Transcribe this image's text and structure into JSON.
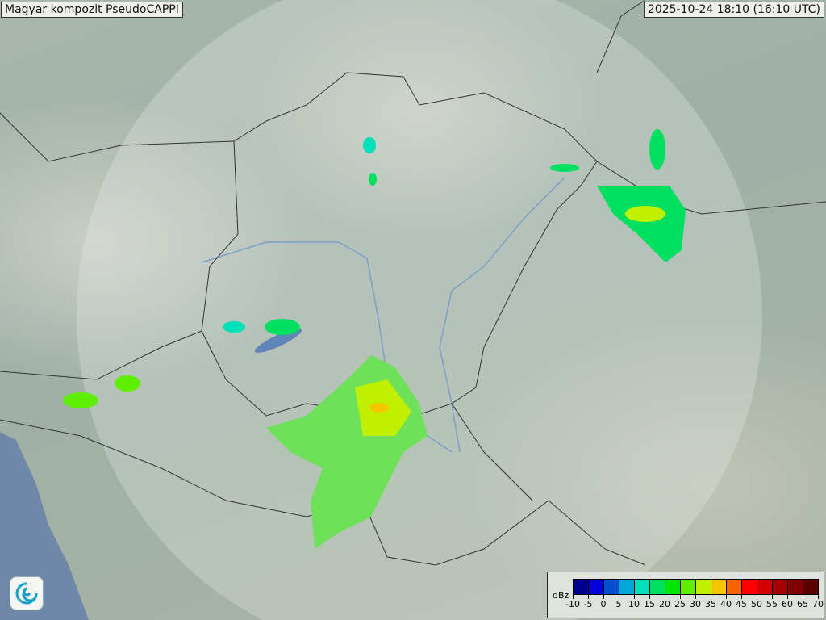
{
  "header": {
    "title": "Magyar kompozit  PseudoCAPPI",
    "timestamp": "2025-10-24 18:10 (16:10 UTC)"
  },
  "legend": {
    "unit": "dBz",
    "ticks": [
      "-10",
      "-5",
      "0",
      "5",
      "10",
      "15",
      "20",
      "25",
      "30",
      "35",
      "40",
      "45",
      "50",
      "55",
      "60",
      "65",
      "70"
    ],
    "colors": [
      "#00008f",
      "#0000d9",
      "#0050d0",
      "#00a8d8",
      "#00e0b8",
      "#00e060",
      "#00e600",
      "#60ee00",
      "#c0f000",
      "#f4c800",
      "#fa6400",
      "#ff0000",
      "#d20000",
      "#a80000",
      "#800000",
      "#5a0000"
    ]
  },
  "colors": {
    "sea": "#6f88a8",
    "coverage": "#eef2ee",
    "border": "#333333"
  },
  "logo": {
    "icon": "met-service-swirl-logo"
  }
}
